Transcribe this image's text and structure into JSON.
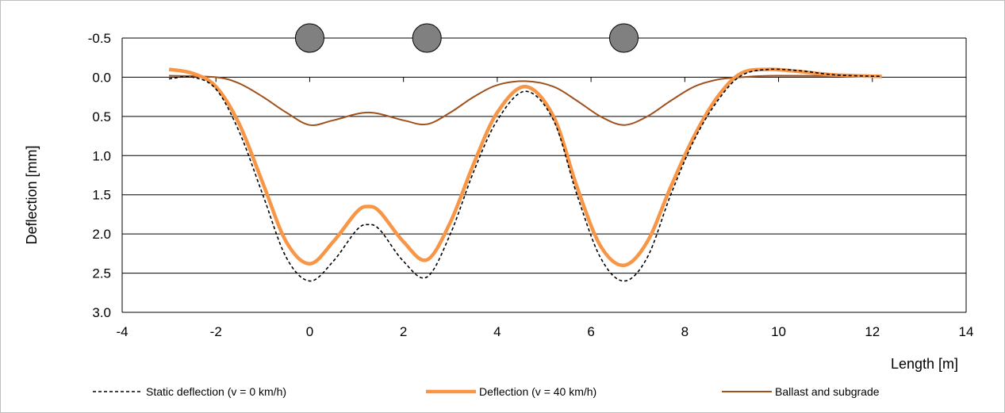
{
  "chart_data": {
    "type": "line",
    "xlabel": "Length [m]",
    "ylabel": "Deflection [mm]",
    "xlim": [
      -4,
      14
    ],
    "ylim": [
      -0.5,
      3.0
    ],
    "y_inverted": true,
    "x_ticks": [
      -4,
      -2,
      0,
      2,
      4,
      6,
      8,
      10,
      12,
      14
    ],
    "y_ticks": [
      -0.5,
      0.0,
      0.5,
      1.0,
      1.5,
      2.0,
      2.5,
      3.0
    ],
    "y_tick_labels": [
      "-0.5",
      "0.0",
      "0.5",
      "1.0",
      "1.5",
      "2.0",
      "2.5",
      "3.0"
    ],
    "grid": "horizontal",
    "legend_position": "bottom",
    "wheel_positions": [
      0,
      2.5,
      6.7
    ],
    "wheel_level": -0.5,
    "colors": {
      "static": "#000000",
      "deflection": "#f79646",
      "ballast": "#a0521e",
      "wheel": "#808080"
    },
    "series": [
      {
        "name": "Static deflection (v = 0 km/h)",
        "style": "dashed",
        "x": [
          -3.0,
          -2.5,
          -2.0,
          -1.5,
          -1.0,
          -0.5,
          0.0,
          0.5,
          1.0,
          1.25,
          1.5,
          2.0,
          2.5,
          3.0,
          3.5,
          4.0,
          4.6,
          5.2,
          5.7,
          6.2,
          6.7,
          7.2,
          7.7,
          8.2,
          8.7,
          9.2,
          9.8,
          10.5,
          11.2,
          12.2
        ],
        "values": [
          0.02,
          0.0,
          0.15,
          0.7,
          1.5,
          2.3,
          2.6,
          2.35,
          1.95,
          1.88,
          1.95,
          2.35,
          2.55,
          2.0,
          1.2,
          0.55,
          0.18,
          0.55,
          1.5,
          2.3,
          2.6,
          2.3,
          1.5,
          0.8,
          0.3,
          -0.02,
          -0.1,
          -0.08,
          -0.03,
          -0.01
        ]
      },
      {
        "name": "Deflection (v = 40 km/h)",
        "style": "solid-thick",
        "x": [
          -3.0,
          -2.5,
          -2.0,
          -1.5,
          -1.0,
          -0.5,
          0.0,
          0.5,
          1.0,
          1.25,
          1.5,
          2.0,
          2.5,
          3.0,
          3.5,
          4.0,
          4.6,
          5.2,
          5.7,
          6.2,
          6.7,
          7.2,
          7.7,
          8.2,
          8.7,
          9.2,
          9.8,
          10.5,
          11.2,
          12.2
        ],
        "values": [
          -0.1,
          -0.05,
          0.12,
          0.6,
          1.35,
          2.1,
          2.38,
          2.1,
          1.72,
          1.65,
          1.72,
          2.1,
          2.33,
          1.85,
          1.1,
          0.45,
          0.12,
          0.5,
          1.4,
          2.15,
          2.4,
          2.1,
          1.4,
          0.75,
          0.25,
          -0.05,
          -0.1,
          -0.07,
          -0.03,
          -0.01
        ]
      },
      {
        "name": "Ballast and subgrade",
        "style": "solid",
        "x": [
          -3.0,
          -2.0,
          -1.5,
          -1.0,
          -0.5,
          0.0,
          0.5,
          1.25,
          2.0,
          2.5,
          3.0,
          3.5,
          4.0,
          4.6,
          5.2,
          5.7,
          6.2,
          6.7,
          7.2,
          7.7,
          8.2,
          8.7,
          9.2,
          10.0,
          12.2
        ],
        "values": [
          -0.02,
          0.0,
          0.08,
          0.25,
          0.45,
          0.61,
          0.55,
          0.45,
          0.55,
          0.6,
          0.45,
          0.25,
          0.1,
          0.05,
          0.12,
          0.3,
          0.5,
          0.61,
          0.5,
          0.3,
          0.12,
          0.03,
          0.0,
          -0.02,
          -0.01
        ]
      }
    ]
  }
}
